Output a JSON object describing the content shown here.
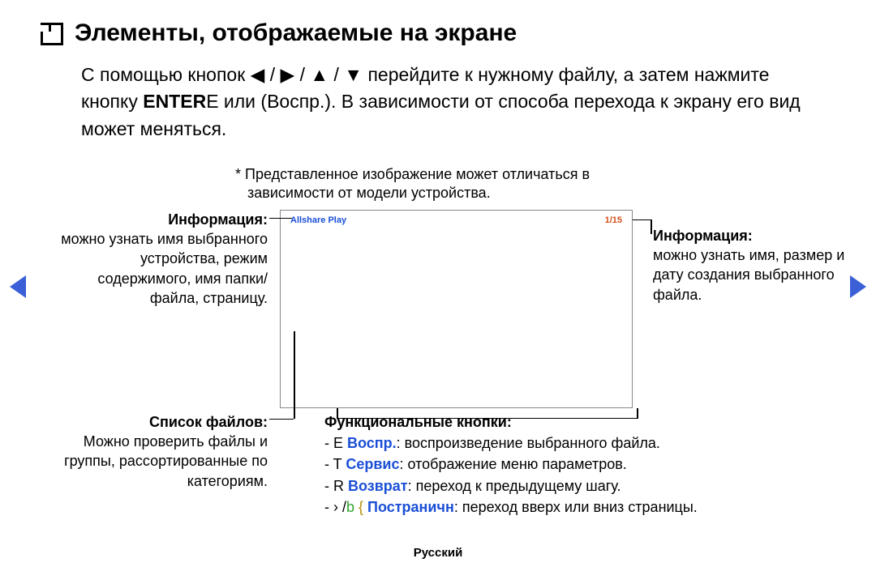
{
  "title": "Элементы, отображаемые на экране",
  "intro_part1": "С помощью кнопок ◀ / ▶ / ▲ / ▼ перейдите к нужному файлу, а затем нажмите кнопку ",
  "intro_enter": "ENTER",
  "intro_part2": "E    или       (Воспр.). В зависимости от способа перехода к экрану его вид может меняться.",
  "disclaimer_star": "* ",
  "disclaimer_l1": "Представленное изображение может отличаться в",
  "disclaimer_l2": "зависимости от модели устройства.",
  "screen": {
    "app_name": "Allshare Play",
    "page_indicator": "1/15"
  },
  "info_left": {
    "heading": "Информация:",
    "body": "можно узнать имя выбранного устройства, режим содержимого, имя папки/файла, страницу."
  },
  "info_right": {
    "heading": "Информация:",
    "body": "можно узнать имя, размер и дату создания выбранного файла."
  },
  "file_list": {
    "heading": "Список файлов:",
    "body": "Можно проверить файлы и группы, рассортированные по категориям."
  },
  "func": {
    "heading": "Функциональные кнопки:",
    "r1_pre": "- E    ",
    "r1_key": "Воспр.",
    "r1_post": ": воспроизведение выбранного файла.",
    "r2_pre": "- T    ",
    "r2_key": "Сервис",
    "r2_post": ": отображение меню параметров.",
    "r3_pre": "- R ",
    "r3_key": "Возврат",
    "r3_post": ": переход к предыдущему шагу.",
    "r4_pre": "-  ›       /",
    "r4_b": "b",
    "r4_brace": " {    ",
    "r4_key": "Постраничн",
    "r4_post": ": переход вверх или вниз страницы."
  },
  "footer": "Русский",
  "colors": {
    "blue": "#1a4fd6",
    "orange": "#d64f1a",
    "green": "#2fa52f",
    "yellow": "#b58d00",
    "nav_arrow": "#3a5fd6"
  }
}
